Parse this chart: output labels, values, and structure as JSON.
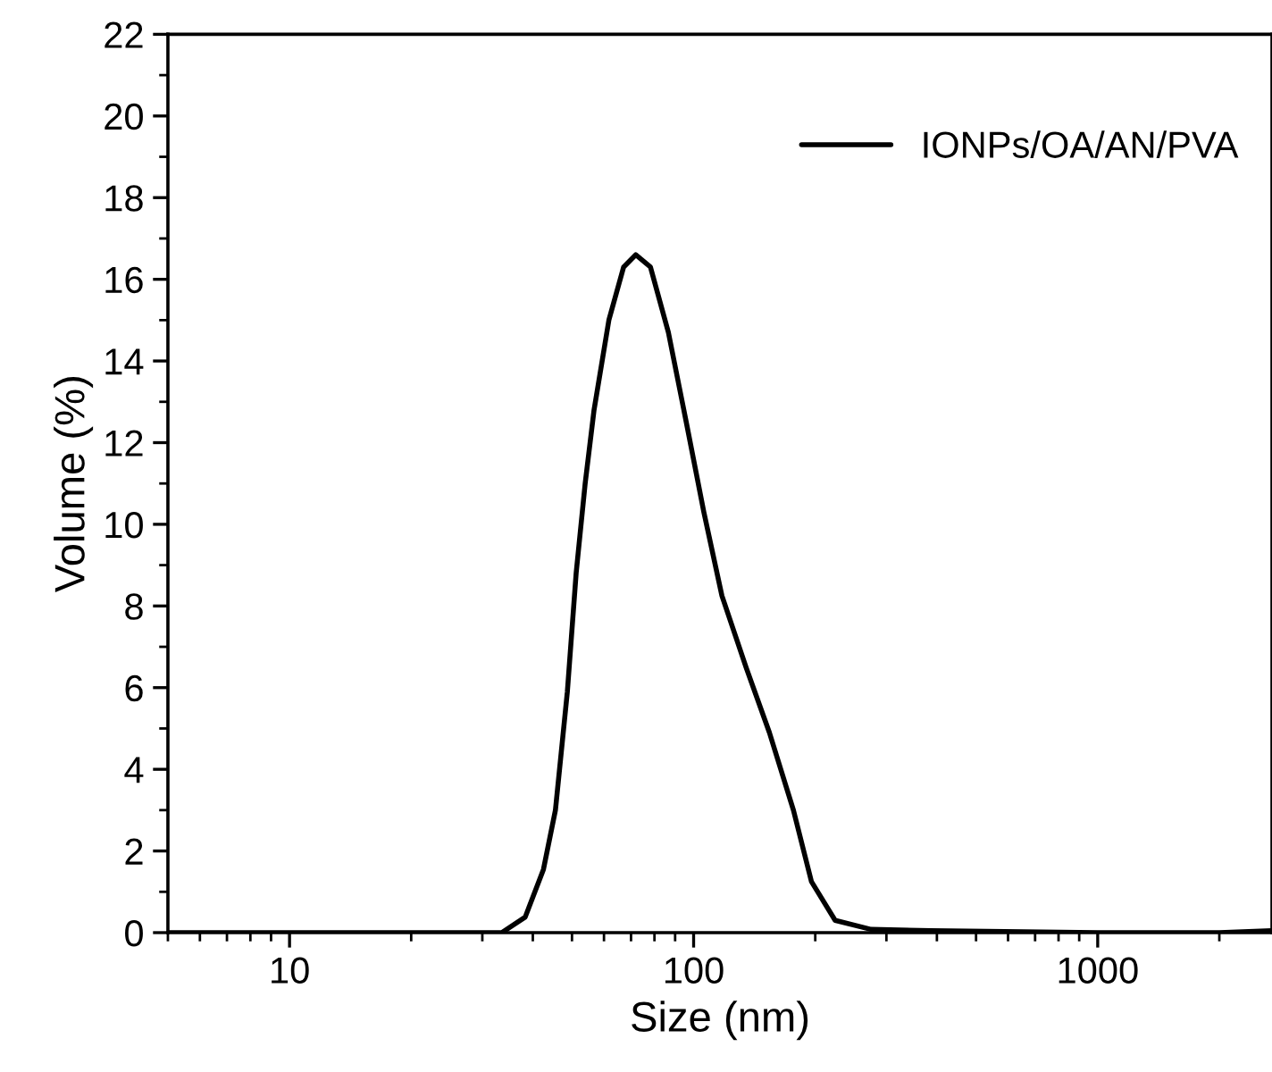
{
  "chart_data": {
    "type": "line",
    "xlabel": "Size (nm)",
    "ylabel": "Volume (%)",
    "log": "x",
    "xlim": [
      5,
      2700
    ],
    "xticks": [
      10,
      100,
      1000
    ],
    "ylim": [
      0,
      22
    ],
    "yticks": [
      0,
      2,
      4,
      6,
      8,
      10,
      12,
      14,
      16,
      18,
      20,
      22
    ],
    "grid": false,
    "legend": "top right",
    "marker": "none",
    "line_style": "solid",
    "series": [
      {
        "name": "IONPs/OA/AN/PVA",
        "color": "#000000",
        "x": [
          5,
          20,
          30,
          33.5,
          38.3,
          42.5,
          45.5,
          48.7,
          51.2,
          53.9,
          56.7,
          61.7,
          67.1,
          71.9,
          78.2,
          86.6,
          95.9,
          106,
          117.5,
          134.8,
          154,
          176.6,
          195.7,
          224,
          275,
          386,
          1000,
          2000,
          2700
        ],
        "values": [
          0,
          0,
          0,
          0,
          0.38,
          1.55,
          3.0,
          5.9,
          8.8,
          11.0,
          12.8,
          15.0,
          16.3,
          16.6,
          16.3,
          14.7,
          12.5,
          10.3,
          8.25,
          6.5,
          4.9,
          3.0,
          1.25,
          0.3,
          0.08,
          0.05,
          0,
          0,
          0.05
        ]
      }
    ]
  }
}
